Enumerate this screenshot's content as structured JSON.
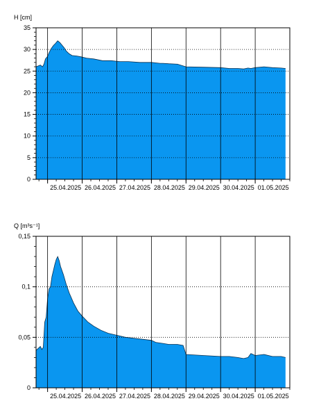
{
  "chart_data": [
    {
      "type": "area",
      "ylabel": "H [cm]",
      "ylim": [
        0,
        35
      ],
      "yticks": [
        0,
        5,
        10,
        15,
        20,
        25,
        30,
        35
      ],
      "ytick_labels": [
        "0",
        "5",
        "10",
        "15",
        "20",
        "25",
        "30",
        "35"
      ],
      "xlim": [
        "2025-04-24T16:00",
        "2025-05-02T00:00"
      ],
      "xticks": [
        "2025-04-25",
        "2025-04-26",
        "2025-04-27",
        "2025-04-28",
        "2025-04-29",
        "2025-04-30",
        "2025-05-01"
      ],
      "xtick_labels": [
        "25.04.2025",
        "26.04.2025",
        "27.04.2025",
        "28.04.2025",
        "29.04.2025",
        "30.04.2025",
        "01.05.2025"
      ],
      "grid": true,
      "fill_color": "#0a96f0",
      "series": [
        {
          "x": [
            "2025-04-24T16:00",
            "2025-04-24T19:00",
            "2025-04-24T20:30",
            "2025-04-24T21:30",
            "2025-04-24T22:30",
            "2025-04-25T00:00",
            "2025-04-25T01:00",
            "2025-04-25T02:30",
            "2025-04-25T04:00",
            "2025-04-25T05:30",
            "2025-04-25T07:00",
            "2025-04-25T08:30",
            "2025-04-25T10:00",
            "2025-04-25T11:30",
            "2025-04-25T13:00",
            "2025-04-25T15:00",
            "2025-04-25T17:00",
            "2025-04-25T20:00",
            "2025-04-25T23:00",
            "2025-04-26T03:00",
            "2025-04-26T08:00",
            "2025-04-26T14:00",
            "2025-04-26T20:00",
            "2025-04-27T02:00",
            "2025-04-27T08:00",
            "2025-04-27T16:00",
            "2025-04-28T00:00",
            "2025-04-28T06:00",
            "2025-04-28T08:00",
            "2025-04-28T12:00",
            "2025-04-28T18:00",
            "2025-04-29T00:00",
            "2025-04-29T12:00",
            "2025-04-30T00:00",
            "2025-04-30T06:00",
            "2025-04-30T12:00",
            "2025-04-30T16:00",
            "2025-04-30T19:00",
            "2025-04-30T21:00",
            "2025-05-01T00:00",
            "2025-05-01T06:00",
            "2025-05-01T12:00",
            "2025-05-01T18:00",
            "2025-05-01T21:00"
          ],
          "y": [
            26.0,
            26.4,
            26.0,
            26.6,
            27.8,
            28.4,
            29.2,
            30.2,
            30.9,
            31.4,
            32.0,
            31.6,
            31.0,
            30.4,
            29.6,
            29.0,
            28.6,
            28.5,
            28.3,
            28.0,
            27.8,
            27.4,
            27.4,
            27.2,
            27.2,
            27.0,
            27.0,
            26.8,
            26.8,
            26.7,
            26.6,
            26.0,
            25.9,
            25.8,
            25.6,
            25.6,
            25.5,
            25.7,
            25.6,
            25.8,
            26.0,
            25.8,
            25.7,
            25.6
          ]
        }
      ]
    },
    {
      "type": "area",
      "ylabel": "Q [m³s⁻¹]",
      "ylim": [
        0,
        0.15
      ],
      "yticks": [
        0,
        0.05,
        0.1,
        0.15
      ],
      "ytick_labels": [
        "0",
        "0,05",
        "0,1",
        "0,15"
      ],
      "xlim": [
        "2025-04-24T16:00",
        "2025-05-02T00:00"
      ],
      "xticks": [
        "2025-04-25",
        "2025-04-26",
        "2025-04-27",
        "2025-04-28",
        "2025-04-29",
        "2025-04-30",
        "2025-05-01"
      ],
      "xtick_labels": [
        "25.04.2025",
        "26.04.2025",
        "27.04.2025",
        "28.04.2025",
        "29.04.2025",
        "30.04.2025",
        "01.05.2025"
      ],
      "grid": true,
      "fill_color": "#0a96f0",
      "series": [
        {
          "x": [
            "2025-04-24T16:00",
            "2025-04-24T19:00",
            "2025-04-24T20:00",
            "2025-04-24T21:00",
            "2025-04-24T22:00",
            "2025-04-24T23:00",
            "2025-04-25T00:00",
            "2025-04-25T01:00",
            "2025-04-25T02:00",
            "2025-04-25T03:00",
            "2025-04-25T04:00",
            "2025-04-25T05:00",
            "2025-04-25T06:00",
            "2025-04-25T07:00",
            "2025-04-25T08:00",
            "2025-04-25T09:00",
            "2025-04-25T11:00",
            "2025-04-25T13:00",
            "2025-04-25T15:00",
            "2025-04-25T18:00",
            "2025-04-25T21:00",
            "2025-04-26T00:00",
            "2025-04-26T04:00",
            "2025-04-26T08:00",
            "2025-04-26T13:00",
            "2025-04-26T18:00",
            "2025-04-27T00:00",
            "2025-04-27T06:00",
            "2025-04-27T12:00",
            "2025-04-27T18:00",
            "2025-04-28T00:00",
            "2025-04-28T03:00",
            "2025-04-28T08:00",
            "2025-04-28T12:00",
            "2025-04-28T18:00",
            "2025-04-28T22:00",
            "2025-04-29T00:00",
            "2025-04-29T12:00",
            "2025-04-30T00:00",
            "2025-04-30T06:00",
            "2025-04-30T12:00",
            "2025-04-30T16:00",
            "2025-04-30T19:00",
            "2025-04-30T21:00",
            "2025-05-01T00:00",
            "2025-05-01T06:00",
            "2025-05-01T12:00",
            "2025-05-01T18:00",
            "2025-05-01T21:00"
          ],
          "y": [
            0.037,
            0.041,
            0.038,
            0.04,
            0.065,
            0.07,
            0.088,
            0.098,
            0.1,
            0.11,
            0.116,
            0.122,
            0.127,
            0.13,
            0.126,
            0.12,
            0.112,
            0.102,
            0.094,
            0.084,
            0.076,
            0.071,
            0.065,
            0.061,
            0.057,
            0.054,
            0.052,
            0.05,
            0.049,
            0.048,
            0.047,
            0.045,
            0.044,
            0.043,
            0.043,
            0.042,
            0.033,
            0.032,
            0.031,
            0.031,
            0.03,
            0.029,
            0.03,
            0.034,
            0.032,
            0.033,
            0.031,
            0.031,
            0.03
          ]
        }
      ]
    }
  ]
}
